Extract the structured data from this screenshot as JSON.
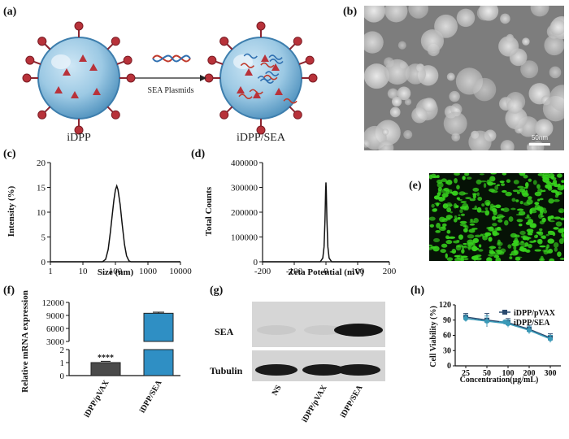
{
  "colors": {
    "accent_blue": "#2f8fc4",
    "dark_bar": "#4a4a4a",
    "spike_red": "#b8323a",
    "gfp_green": "#37d21d",
    "tem_gray": "#8c8c8c"
  },
  "panel_a": {
    "label": "(a)",
    "left_name": "iDPP",
    "right_name": "iDPP/SEA",
    "arrow_text": "SEA Plasmids"
  },
  "panel_b": {
    "label": "(b)",
    "scale_bar": "50nm"
  },
  "panel_e": {
    "label": "(e)"
  },
  "panel_g": {
    "label": "(g)",
    "rows": [
      "SEA",
      "Tubulin"
    ],
    "lanes": [
      "NS",
      "iDPP/pVAX",
      "iDPP/SEA"
    ]
  },
  "chart_data": [
    {
      "id": "c",
      "label": "(c)",
      "type": "line",
      "xlabel": "Size (nm)",
      "ylabel": "Intensity (%)",
      "x_scale": "log",
      "xlim": [
        1,
        10000
      ],
      "ylim": [
        0,
        20
      ],
      "x_ticks": [
        1,
        10,
        100,
        1000,
        10000
      ],
      "x_tick_labels": [
        "1",
        "10",
        "100",
        "1000",
        "10000"
      ],
      "y_ticks": [
        0,
        5,
        10,
        15,
        20
      ],
      "series": [
        {
          "x": [
            40,
            50,
            60,
            70,
            80,
            90,
            100,
            110,
            120,
            140,
            160,
            190,
            220,
            260,
            300
          ],
          "y": [
            0,
            0.5,
            2.5,
            6.0,
            9.5,
            12.5,
            14.5,
            15.3,
            14.5,
            11.5,
            7.8,
            3.5,
            1.2,
            0.2,
            0
          ]
        }
      ]
    },
    {
      "id": "d",
      "label": "(d)",
      "type": "line",
      "xlabel": "Zeta Potential (mV)",
      "ylabel": "Total Counts",
      "xlim": [
        -200,
        200
      ],
      "ylim": [
        0,
        400000
      ],
      "x_ticks": [
        -200,
        -100,
        0,
        100,
        200
      ],
      "x_tick_labels": [
        "-200",
        "-100",
        "0",
        "100",
        "200"
      ],
      "y_ticks": [
        0,
        100000,
        200000,
        300000,
        400000
      ],
      "y_tick_labels": [
        "0",
        "100000",
        "200000",
        "300000",
        "400000"
      ],
      "series": [
        {
          "x": [
            -18,
            -10,
            -6,
            -3,
            -1,
            0,
            1,
            3,
            6,
            10,
            18
          ],
          "y": [
            0,
            15000,
            60000,
            170000,
            290000,
            320000,
            290000,
            170000,
            60000,
            15000,
            0
          ]
        }
      ]
    },
    {
      "id": "f",
      "label": "(f)",
      "type": "bar",
      "ylabel": "Relative mRNA expression",
      "categories": [
        "iDPP/pVAX",
        "iDPP/SEA"
      ],
      "values": [
        1,
        9500
      ],
      "errors": [
        0.1,
        250
      ],
      "y_break": [
        2,
        3000
      ],
      "ylim_lower": [
        0,
        2
      ],
      "ylim_upper": [
        3000,
        12000
      ],
      "y_ticks": [
        0,
        1,
        2,
        3000,
        6000,
        9000,
        12000
      ],
      "y_tick_labels": [
        "0",
        "1",
        "2",
        "3000",
        "6000",
        "9000",
        "12000"
      ],
      "annotation": "****"
    },
    {
      "id": "h",
      "label": "(h)",
      "type": "line",
      "xlabel": "Concentration(μg/mL)",
      "ylabel": "Cell Viability (%)",
      "categories": [
        "25",
        "50",
        "100",
        "200",
        "300"
      ],
      "ylim": [
        0,
        120
      ],
      "y_ticks": [
        0,
        30,
        60,
        90,
        120
      ],
      "legend_position": "top-right",
      "series": [
        {
          "name": "iDPP/pVAX",
          "values": [
            96,
            90,
            85,
            72,
            55
          ],
          "errors": [
            7,
            13,
            8,
            8,
            8
          ],
          "color": "#2b4a6e"
        },
        {
          "name": "iDPP/SEA",
          "values": [
            93,
            88,
            83,
            70,
            53
          ],
          "errors": [
            6,
            10,
            7,
            7,
            7
          ],
          "color": "#3a9ab8"
        }
      ]
    }
  ]
}
